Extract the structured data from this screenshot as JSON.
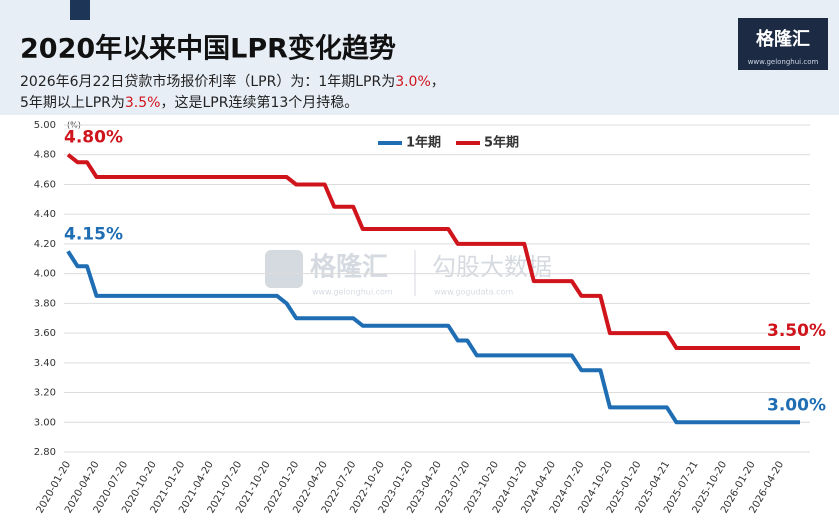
{
  "header": {
    "logo": "格隆汇",
    "site": "www.gelonghui.com"
  },
  "subtitle_lines": [
    [
      "2026年6月22日贷款市场报价利率（LPR）为：1年期LPR为",
      "3.0%",
      "，"
    ],
    [
      "5年期以上LPR为",
      "3.5%",
      "，这是LPR连续第13个月持稳。"
    ]
  ],
  "watermark": {
    "left": "格隆汇",
    "left_url": "www.gelonghui.com",
    "right": "勾股大数据",
    "right_url": "www.gogudata.com"
  },
  "chart_data": {
    "type": "line",
    "title": "2020年以来中国LPR变化趋势",
    "y_unit": "(%)",
    "categories": [
      "2020-01-20",
      null,
      null,
      "2020-04-20",
      null,
      null,
      "2020-07-20",
      null,
      null,
      "2020-10-20",
      null,
      null,
      "2021-01-20",
      null,
      null,
      "2021-04-20",
      null,
      null,
      "2021-07-20",
      null,
      null,
      "2021-10-20",
      null,
      null,
      "2022-01-20",
      null,
      null,
      "2022-04-20",
      null,
      null,
      "2022-07-20",
      null,
      null,
      "2022-10-20",
      null,
      null,
      "2023-01-20",
      null,
      null,
      "2023-04-20",
      null,
      null,
      "2023-07-20",
      null,
      null,
      "2023-10-20",
      null,
      null,
      "2024-01-20",
      null,
      null,
      "2024-04-20",
      null,
      null,
      "2024-07-20",
      null,
      null,
      "2024-10-20",
      null,
      null,
      "2025-01-20",
      null,
      null,
      "2025-04-21",
      null,
      null,
      "2025-07-21",
      null,
      null,
      "2025-10-20",
      null,
      null,
      "2026-01-20",
      null,
      null,
      "2026-04-20",
      null,
      null
    ],
    "series": [
      {
        "name": "1年期",
        "color": "#1f6db3",
        "values": [
          4.15,
          4.05,
          4.05,
          3.85,
          3.85,
          3.85,
          3.85,
          3.85,
          3.85,
          3.85,
          3.85,
          3.85,
          3.85,
          3.85,
          3.85,
          3.85,
          3.85,
          3.85,
          3.85,
          3.85,
          3.85,
          3.85,
          3.85,
          3.8,
          3.7,
          3.7,
          3.7,
          3.7,
          3.7,
          3.7,
          3.7,
          3.65,
          3.65,
          3.65,
          3.65,
          3.65,
          3.65,
          3.65,
          3.65,
          3.65,
          3.65,
          3.55,
          3.55,
          3.45,
          3.45,
          3.45,
          3.45,
          3.45,
          3.45,
          3.45,
          3.45,
          3.45,
          3.45,
          3.45,
          3.35,
          3.35,
          3.35,
          3.1,
          3.1,
          3.1,
          3.1,
          3.1,
          3.1,
          3.1,
          3.0,
          3.0,
          3.0,
          3.0,
          3.0,
          3.0,
          3.0,
          3.0,
          3.0,
          3.0,
          3.0,
          3.0,
          3.0,
          3.0
        ],
        "value_labels": [
          "4.15%",
          null,
          null,
          null,
          null,
          null,
          null,
          null,
          null,
          null,
          null,
          null,
          null,
          null,
          null,
          null,
          null,
          null,
          null,
          null,
          null,
          null,
          null,
          null,
          null,
          null,
          null,
          null,
          null,
          null,
          null,
          null,
          null,
          null,
          null,
          null,
          null,
          null,
          null,
          null,
          null,
          null,
          null,
          null,
          null,
          null,
          null,
          null,
          null,
          null,
          null,
          null,
          null,
          null,
          null,
          null,
          null,
          null,
          null,
          null,
          null,
          null,
          null,
          null,
          null,
          null,
          null,
          null,
          null,
          null,
          null,
          null,
          null,
          null,
          null,
          null,
          null,
          "3.00%"
        ]
      },
      {
        "name": "5年期",
        "color": "#d0141c",
        "values": [
          4.8,
          4.75,
          4.75,
          4.65,
          4.65,
          4.65,
          4.65,
          4.65,
          4.65,
          4.65,
          4.65,
          4.65,
          4.65,
          4.65,
          4.65,
          4.65,
          4.65,
          4.65,
          4.65,
          4.65,
          4.65,
          4.65,
          4.65,
          4.65,
          4.6,
          4.6,
          4.6,
          4.6,
          4.45,
          4.45,
          4.45,
          4.3,
          4.3,
          4.3,
          4.3,
          4.3,
          4.3,
          4.3,
          4.3,
          4.3,
          4.3,
          4.2,
          4.2,
          4.2,
          4.2,
          4.2,
          4.2,
          4.2,
          4.2,
          3.95,
          3.95,
          3.95,
          3.95,
          3.95,
          3.85,
          3.85,
          3.85,
          3.6,
          3.6,
          3.6,
          3.6,
          3.6,
          3.6,
          3.6,
          3.5,
          3.5,
          3.5,
          3.5,
          3.5,
          3.5,
          3.5,
          3.5,
          3.5,
          3.5,
          3.5,
          3.5,
          3.5,
          3.5
        ],
        "value_labels": [
          "4.80%",
          null,
          null,
          null,
          null,
          null,
          null,
          null,
          null,
          null,
          null,
          null,
          null,
          null,
          null,
          null,
          null,
          null,
          null,
          null,
          null,
          null,
          null,
          null,
          null,
          null,
          null,
          null,
          null,
          null,
          null,
          null,
          null,
          null,
          null,
          null,
          null,
          null,
          null,
          null,
          null,
          null,
          null,
          null,
          null,
          null,
          null,
          null,
          null,
          null,
          null,
          null,
          null,
          null,
          null,
          null,
          null,
          null,
          null,
          null,
          null,
          null,
          null,
          null,
          null,
          null,
          null,
          null,
          null,
          null,
          null,
          null,
          null,
          null,
          null,
          null,
          null,
          "3.50%"
        ]
      }
    ],
    "ylim": [
      2.8,
      5.0
    ],
    "yticks": [
      {
        "value": 2.8,
        "label": "2.80"
      },
      {
        "value": 3.0,
        "label": "3.00"
      },
      {
        "value": 3.2,
        "label": "3.20"
      },
      {
        "value": 3.4,
        "label": "3.40"
      },
      {
        "value": 3.6,
        "label": "3.60"
      },
      {
        "value": 3.8,
        "label": "3.80"
      },
      {
        "value": 4.0,
        "label": "4.00"
      },
      {
        "value": 4.2,
        "label": "4.20"
      },
      {
        "value": 4.4,
        "label": "4.40"
      },
      {
        "value": 4.6,
        "label": "4.60"
      },
      {
        "value": 4.8,
        "label": "4.80"
      },
      {
        "value": 5.0,
        "label": "5.00"
      }
    ],
    "grid": true
  }
}
